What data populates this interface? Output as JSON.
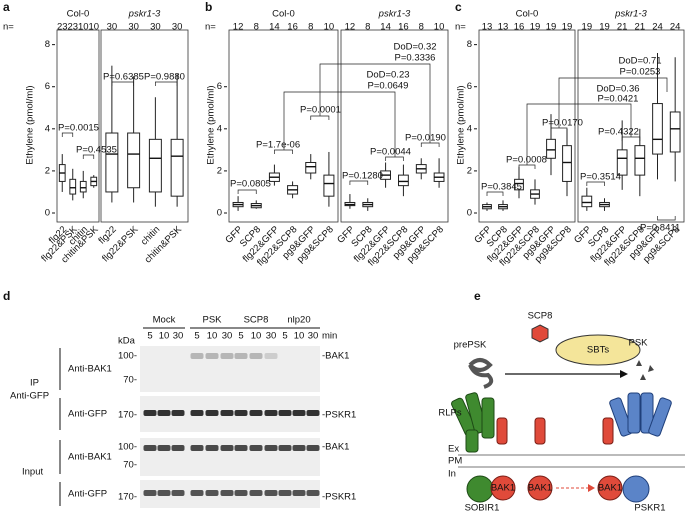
{
  "chart_data": [
    {
      "type": "box",
      "panel": "a",
      "ylabel": "Ethylene (pmol/ml)",
      "ylim": [
        0,
        8.6
      ],
      "yticks": [
        0,
        2,
        4,
        6,
        8
      ],
      "n_label": "n=",
      "facets": [
        {
          "title": "Col-0",
          "categories": [
            "flg22",
            "flg22&PSK",
            "chitin",
            "chitin&PSK"
          ],
          "n": [
            23,
            23,
            10,
            10
          ],
          "boxes": [
            {
              "min": 1.0,
              "q1": 1.5,
              "median": 1.9,
              "q3": 2.3,
              "max": 2.8
            },
            {
              "min": 0.6,
              "q1": 0.9,
              "median": 1.2,
              "q3": 1.6,
              "max": 2.1
            },
            {
              "min": 0.7,
              "q1": 1.0,
              "median": 1.2,
              "q3": 1.5,
              "max": 2.0
            },
            {
              "min": 1.2,
              "q1": 1.3,
              "median": 1.5,
              "q3": 1.7,
              "max": 1.8
            }
          ]
        },
        {
          "title": "pskr1-3",
          "categories": [
            "flg22",
            "flg22&PSK",
            "chitin",
            "chitin&PSK"
          ],
          "n": [
            30,
            30,
            30,
            30
          ],
          "boxes": [
            {
              "min": 0.5,
              "q1": 1.0,
              "median": 2.8,
              "q3": 3.8,
              "max": 7.0
            },
            {
              "min": 0.5,
              "q1": 1.2,
              "median": 2.8,
              "q3": 3.8,
              "max": 6.5
            },
            {
              "min": 0.3,
              "q1": 1.0,
              "median": 2.6,
              "q3": 3.5,
              "max": 5.5
            },
            {
              "min": 0.3,
              "q1": 0.8,
              "median": 2.7,
              "q3": 3.5,
              "max": 6.6
            }
          ]
        }
      ],
      "annotations": [
        "P=0.0015",
        "P=0.4535",
        "P=0.6385",
        "P=0.9880"
      ]
    },
    {
      "type": "box",
      "panel": "b",
      "ylabel": "Ethylene (pmol/ml)",
      "ylim": [
        0,
        8.6
      ],
      "yticks": [
        0,
        2,
        4,
        6
      ],
      "n_label": "n=",
      "facets": [
        {
          "title": "Col-0",
          "categories": [
            "GFP",
            "SCP8",
            "flg22&GFP",
            "flg22&SCP8",
            "pg9&GFP",
            "pg9&SCP8"
          ],
          "n": [
            12,
            8,
            14,
            16,
            8,
            10
          ],
          "boxes": [
            {
              "min": 0.1,
              "q1": 0.3,
              "median": 0.4,
              "q3": 0.5,
              "max": 0.8
            },
            {
              "min": 0.2,
              "q1": 0.25,
              "median": 0.35,
              "q3": 0.45,
              "max": 0.6
            },
            {
              "min": 1.3,
              "q1": 1.5,
              "median": 1.7,
              "q3": 1.9,
              "max": 2.3
            },
            {
              "min": 0.7,
              "q1": 0.9,
              "median": 1.1,
              "q3": 1.3,
              "max": 1.5
            },
            {
              "min": 1.6,
              "q1": 1.9,
              "median": 2.2,
              "q3": 2.4,
              "max": 2.8
            },
            {
              "min": 0.3,
              "q1": 0.8,
              "median": 1.4,
              "q3": 1.8,
              "max": 2.9
            }
          ]
        },
        {
          "title": "pskr1-3",
          "categories": [
            "GFP",
            "SCP8",
            "flg22&GFP",
            "flg22&SCP8",
            "pg9&GFP",
            "pg9&SCP8"
          ],
          "n": [
            12,
            8,
            14,
            16,
            8,
            10
          ],
          "boxes": [
            {
              "min": 0.2,
              "q1": 0.35,
              "median": 0.4,
              "q3": 0.5,
              "max": 0.9
            },
            {
              "min": 0.1,
              "q1": 0.3,
              "median": 0.4,
              "q3": 0.5,
              "max": 0.7
            },
            {
              "min": 1.2,
              "q1": 1.6,
              "median": 1.8,
              "q3": 2.0,
              "max": 2.4
            },
            {
              "min": 0.8,
              "q1": 1.3,
              "median": 1.5,
              "q3": 1.8,
              "max": 2.3
            },
            {
              "min": 1.6,
              "q1": 1.9,
              "median": 2.1,
              "q3": 2.3,
              "max": 2.6
            },
            {
              "min": 1.2,
              "q1": 1.5,
              "median": 1.7,
              "q3": 1.9,
              "max": 2.6
            }
          ]
        }
      ],
      "annotations": [
        "P=0.0805",
        "P=1.7e-06",
        "P=0.0001",
        "P=0.1280",
        "P=0.0044",
        "P=0.0190",
        "DoD=0.23",
        "P=0.0649",
        "DoD=0.32",
        "P=0.3336"
      ]
    },
    {
      "type": "box",
      "panel": "c",
      "ylabel": "Ethylene (pmol/ml)",
      "ylim": [
        0,
        8.6
      ],
      "yticks": [
        0,
        2,
        4,
        6,
        8
      ],
      "n_label": "n=",
      "facets": [
        {
          "title": "Col-0",
          "categories": [
            "GFP",
            "SCP8",
            "flg22&GFP",
            "flg22&SCP8",
            "pg9&GFP",
            "pg9&SCP8"
          ],
          "n": [
            13,
            13,
            16,
            19,
            19,
            19
          ],
          "boxes": [
            {
              "min": 0.1,
              "q1": 0.2,
              "median": 0.3,
              "q3": 0.4,
              "max": 0.5
            },
            {
              "min": 0.1,
              "q1": 0.2,
              "median": 0.3,
              "q3": 0.4,
              "max": 0.6
            },
            {
              "min": 0.7,
              "q1": 1.1,
              "median": 1.4,
              "q3": 1.6,
              "max": 2.2
            },
            {
              "min": 0.4,
              "q1": 0.7,
              "median": 0.9,
              "q3": 1.1,
              "max": 1.6
            },
            {
              "min": 1.8,
              "q1": 2.6,
              "median": 3.0,
              "q3": 3.5,
              "max": 4.7
            },
            {
              "min": 0.8,
              "q1": 1.5,
              "median": 2.4,
              "q3": 3.2,
              "max": 4.0
            }
          ]
        },
        {
          "title": "pskr1-3",
          "categories": [
            "GFP",
            "SCP8",
            "flg22&GFP",
            "flg22&SCP8",
            "pg9&GFP",
            "pg9&SCP8"
          ],
          "n": [
            19,
            19,
            21,
            21,
            24,
            24
          ],
          "boxes": [
            {
              "min": 0.1,
              "q1": 0.3,
              "median": 0.5,
              "q3": 0.8,
              "max": 1.2
            },
            {
              "min": 0.1,
              "q1": 0.3,
              "median": 0.4,
              "q3": 0.5,
              "max": 0.7
            },
            {
              "min": 1.1,
              "q1": 1.8,
              "median": 2.6,
              "q3": 3.0,
              "max": 4.4
            },
            {
              "min": 0.8,
              "q1": 1.8,
              "median": 2.6,
              "q3": 3.2,
              "max": 4.0
            },
            {
              "min": 1.6,
              "q1": 2.8,
              "median": 3.5,
              "q3": 5.2,
              "max": 7.6
            },
            {
              "min": 1.5,
              "q1": 2.9,
              "median": 4.0,
              "q3": 4.8,
              "max": 7.4
            }
          ]
        }
      ],
      "annotations": [
        "P=0.3845",
        "P=0.0008",
        "P=0.0170",
        "P=0.3514",
        "P=0.4322",
        "P=0.8411",
        "DoD=0.36",
        "P=0.0421",
        "DoD=0.71",
        "P=0.0253"
      ]
    }
  ],
  "blot": {
    "label": "d",
    "kda": "kDa",
    "groups": [
      "Mock",
      "PSK",
      "SCP8",
      "nlp20"
    ],
    "times": [
      "5",
      "10",
      "30"
    ],
    "time_unit": "min",
    "ip_label": "IP",
    "ip_antibody": "Anti-GFP",
    "input_label": "Input",
    "rows": [
      {
        "antibody": "Anti-BAK1",
        "markers": [
          "100-",
          "70-"
        ],
        "target": "-BAK1"
      },
      {
        "antibody": "Anti-GFP",
        "markers": [
          "170-"
        ],
        "target": "-PSKR1"
      },
      {
        "antibody": "Anti-BAK1",
        "markers": [
          "100-",
          "70-"
        ],
        "target": "-BAK1"
      },
      {
        "antibody": "Anti-GFP",
        "markers": [
          "170-"
        ],
        "target": "-PSKR1"
      }
    ]
  },
  "diagram": {
    "label": "e",
    "labels": [
      "SCP8",
      "prePSK",
      "SBTs",
      "PSK",
      "RLPs",
      "Ex",
      "PM",
      "In",
      "SOBIR1",
      "BAK1",
      "BAK1",
      "BAK1",
      "PSKR1"
    ]
  }
}
